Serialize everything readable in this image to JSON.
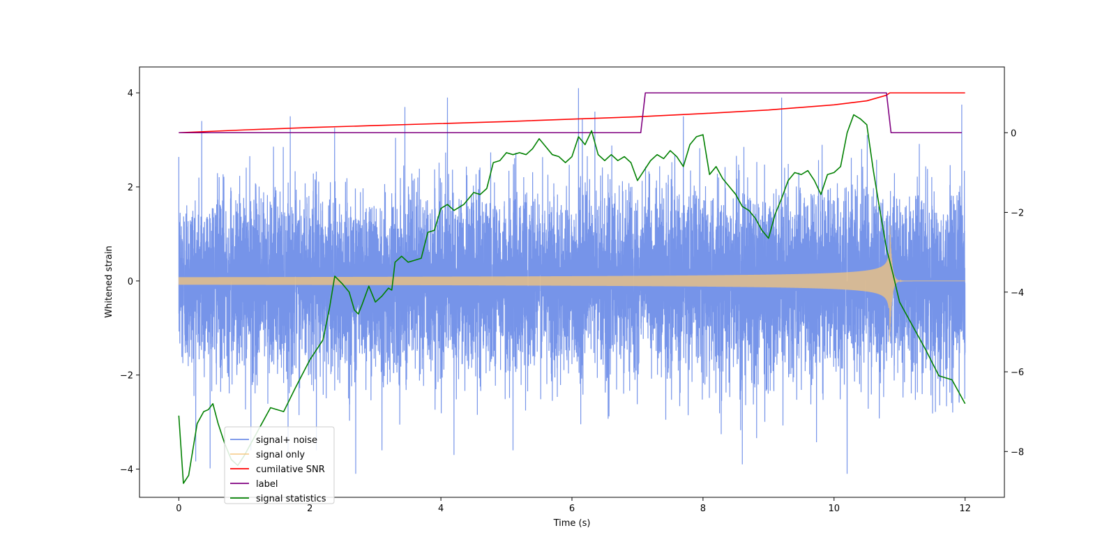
{
  "chart_data": {
    "type": "line",
    "title": "",
    "xlabel": "Time (s)",
    "ylabel": "Whitened strain",
    "y2label": "",
    "xlim": [
      -0.6,
      12.6
    ],
    "ylim": [
      -4.6,
      4.55
    ],
    "y2lim": [
      -9.15,
      1.65
    ],
    "xticks": [
      0,
      2,
      4,
      6,
      8,
      10,
      12
    ],
    "yticks": [
      -4,
      -2,
      0,
      2,
      4
    ],
    "y2ticks": [
      -8,
      -6,
      -4,
      -2,
      0
    ],
    "legend_position": "lower-left",
    "series": [
      {
        "name": "signal+ noise",
        "axis": "left",
        "color": "#6f8ee8",
        "style": "noise",
        "x_range": [
          0,
          12
        ],
        "sigma": 0.95,
        "spikes": [
          [
            0.35,
            3.4
          ],
          [
            1.1,
            -3.6
          ],
          [
            1.7,
            3.5
          ],
          [
            2.1,
            -3.6
          ],
          [
            2.7,
            -4.1
          ],
          [
            3.1,
            -3.6
          ],
          [
            3.45,
            3.7
          ],
          [
            4.1,
            3.9
          ],
          [
            4.2,
            -3.7
          ],
          [
            5.1,
            -3.6
          ],
          [
            6.1,
            4.1
          ],
          [
            6.35,
            3.6
          ],
          [
            7.7,
            3.5
          ],
          [
            8.6,
            -3.9
          ],
          [
            9.2,
            3.9
          ],
          [
            10.2,
            -4.1
          ],
          [
            11.95,
            3.75
          ]
        ]
      },
      {
        "name": "signal only",
        "axis": "left",
        "color": "#f5c57a",
        "style": "chirp",
        "x_range": [
          0,
          12
        ],
        "merger_time": 10.85,
        "amplitude_start": 0.08,
        "amplitude_peak": 1.3
      },
      {
        "name": "cumilative SNR",
        "axis": "right",
        "color": "#ff0000",
        "x": [
          0,
          1,
          2,
          3,
          4,
          5,
          6,
          7,
          8,
          9,
          10,
          10.5,
          10.8,
          10.85,
          12
        ],
        "y": [
          0,
          0.07,
          0.13,
          0.18,
          0.23,
          0.28,
          0.34,
          0.4,
          0.48,
          0.57,
          0.7,
          0.8,
          0.94,
          1.0,
          1.0
        ]
      },
      {
        "name": "label",
        "axis": "right",
        "color": "#800080",
        "x": [
          0,
          7.05,
          7.12,
          10.8,
          10.87,
          11.95
        ],
        "y": [
          0,
          0,
          1,
          1,
          0,
          0
        ]
      },
      {
        "name": "signal statistics",
        "axis": "right",
        "color": "#008000",
        "x": [
          0,
          0.07,
          0.15,
          0.28,
          0.38,
          0.45,
          0.52,
          0.6,
          0.7,
          0.8,
          0.9,
          1.0,
          1.2,
          1.4,
          1.6,
          1.78,
          2.0,
          2.2,
          2.3,
          2.38,
          2.5,
          2.6,
          2.68,
          2.74,
          2.8,
          2.9,
          3.0,
          3.1,
          3.2,
          3.25,
          3.3,
          3.4,
          3.5,
          3.6,
          3.7,
          3.8,
          3.9,
          4.0,
          4.1,
          4.2,
          4.35,
          4.5,
          4.6,
          4.7,
          4.8,
          4.9,
          5.0,
          5.1,
          5.2,
          5.3,
          5.4,
          5.5,
          5.6,
          5.7,
          5.8,
          5.9,
          6.0,
          6.1,
          6.2,
          6.3,
          6.4,
          6.5,
          6.6,
          6.7,
          6.8,
          6.9,
          7.0,
          7.1,
          7.2,
          7.3,
          7.4,
          7.5,
          7.6,
          7.7,
          7.8,
          7.9,
          8.0,
          8.1,
          8.2,
          8.3,
          8.4,
          8.5,
          8.6,
          8.7,
          8.8,
          8.9,
          9.0,
          9.1,
          9.2,
          9.3,
          9.4,
          9.5,
          9.6,
          9.7,
          9.8,
          9.9,
          10.0,
          10.1,
          10.2,
          10.3,
          10.4,
          10.5,
          10.6,
          10.7,
          10.8,
          10.9,
          11.0,
          11.2,
          11.4,
          11.6,
          11.8,
          12.0
        ],
        "y": [
          -7.1,
          -8.8,
          -8.6,
          -7.3,
          -7.0,
          -6.95,
          -6.8,
          -7.3,
          -7.8,
          -8.2,
          -8.35,
          -8.1,
          -7.5,
          -6.9,
          -7.0,
          -6.4,
          -5.7,
          -5.2,
          -4.4,
          -3.6,
          -3.8,
          -4.0,
          -4.45,
          -4.55,
          -4.3,
          -3.85,
          -4.25,
          -4.1,
          -3.9,
          -3.95,
          -3.25,
          -3.1,
          -3.25,
          -3.2,
          -3.15,
          -2.5,
          -2.45,
          -1.9,
          -1.8,
          -1.95,
          -1.8,
          -1.5,
          -1.55,
          -1.4,
          -0.75,
          -0.7,
          -0.5,
          -0.55,
          -0.5,
          -0.55,
          -0.4,
          -0.15,
          -0.35,
          -0.55,
          -0.6,
          -0.75,
          -0.6,
          -0.1,
          -0.3,
          0.05,
          -0.55,
          -0.7,
          -0.55,
          -0.7,
          -0.6,
          -0.75,
          -1.2,
          -0.95,
          -0.7,
          -0.55,
          -0.65,
          -0.45,
          -0.6,
          -0.85,
          -0.3,
          -0.1,
          -0.05,
          -1.05,
          -0.85,
          -1.15,
          -1.35,
          -1.55,
          -1.85,
          -1.95,
          -2.15,
          -2.45,
          -2.65,
          -2.05,
          -1.65,
          -1.2,
          -1.0,
          -1.05,
          -0.95,
          -1.2,
          -1.55,
          -1.05,
          -1.0,
          -0.85,
          0.0,
          0.45,
          0.35,
          0.2,
          -0.95,
          -1.95,
          -2.9,
          -3.55,
          -4.25,
          -4.85,
          -5.45,
          -6.1,
          -6.2,
          -6.8
        ]
      }
    ]
  }
}
